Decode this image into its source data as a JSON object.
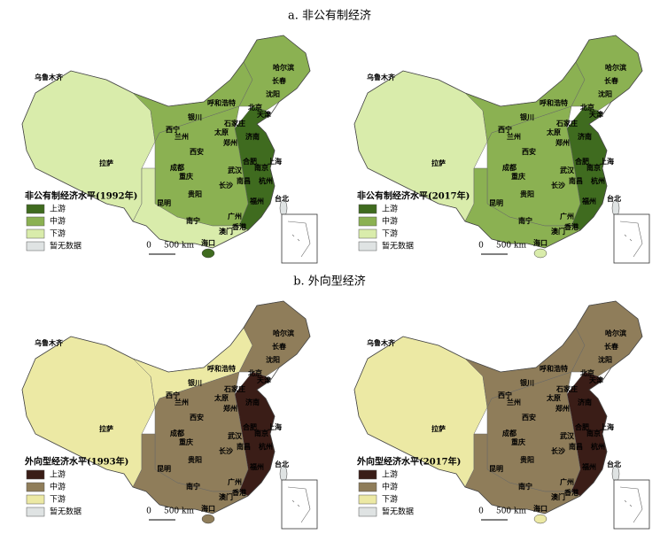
{
  "sections": [
    {
      "title": "a. 非公有制经济",
      "panels": [
        {
          "legend_title": "非公有制经济水平(1992年)"
        },
        {
          "legend_title": "非公有制经济水平(2017年)"
        }
      ],
      "colors": [
        "#3f6b1f",
        "#8bb152",
        "#d9ecab"
      ]
    },
    {
      "title": "b. 外向型经济",
      "panels": [
        {
          "legend_title": "外向型经济水平(1993年)"
        },
        {
          "legend_title": "外向型经济水平(2017年)"
        }
      ],
      "colors": [
        "#3a1d17",
        "#8f7d5a",
        "#ece9a4"
      ]
    }
  ],
  "legend": [
    "上游",
    "中游",
    "下游",
    "暂无数据"
  ],
  "scale": {
    "zero": "0",
    "label": "500 km"
  },
  "cities": [
    "乌鲁木齐",
    "哈尔滨",
    "长春",
    "沈阳",
    "呼和浩特",
    "北京",
    "天津",
    "石家庄",
    "银川",
    "太原",
    "济南",
    "西宁",
    "兰州",
    "郑州",
    "西安",
    "拉萨",
    "成都",
    "合肥",
    "南京",
    "上海",
    "武汉",
    "重庆",
    "杭州",
    "长沙",
    "南昌",
    "贵阳",
    "福州",
    "台北",
    "昆明",
    "南宁",
    "广州",
    "香港",
    "澳门",
    "海口"
  ]
}
